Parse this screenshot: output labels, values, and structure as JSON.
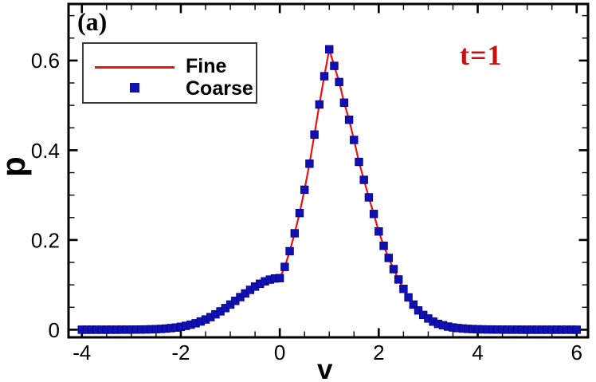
{
  "figure": {
    "panel_label": "(a)",
    "annotation": {
      "text": "t=1",
      "color": "#c41212"
    },
    "axes": {
      "xlabel": "v",
      "ylabel": "p",
      "x_range": [
        -4.27,
        6.23
      ],
      "y_range": [
        -0.017,
        0.726
      ],
      "x_major_ticks": [
        -4,
        -2,
        0,
        2,
        4,
        6
      ],
      "x_tick_labels": [
        "-4",
        "-2",
        "0",
        "2",
        "4",
        "6"
      ],
      "x_minor_step": 0.5,
      "y_major_ticks": [
        0,
        0.2,
        0.4,
        0.6
      ],
      "y_tick_labels": [
        "0",
        "0.2",
        "0.4",
        "0.6"
      ],
      "y_minor_step": 0.05,
      "frame_color": "#000000",
      "grid": "off"
    },
    "legend": {
      "position": "upper-left",
      "items": [
        {
          "label": "Fine",
          "type": "line",
          "color": "#ee1111"
        },
        {
          "label": "Coarse",
          "type": "square",
          "color": "#1111b2"
        }
      ]
    }
  },
  "chart_data": {
    "type": "line",
    "title": "",
    "xlabel": "v",
    "ylabel": "p",
    "xlim": [
      -4.27,
      6.23
    ],
    "ylim": [
      -0.017,
      0.726
    ],
    "legend_position": "upper-left",
    "grid": "off",
    "annotation": "t=1",
    "x": [
      -4,
      -3.9,
      -3.8,
      -3.7,
      -3.6,
      -3.5,
      -3.4,
      -3.3,
      -3.2,
      -3.1,
      -3,
      -2.9,
      -2.8,
      -2.7,
      -2.6,
      -2.5,
      -2.4,
      -2.3,
      -2.2,
      -2.1,
      -2,
      -1.9,
      -1.8,
      -1.7,
      -1.6,
      -1.5,
      -1.4,
      -1.3,
      -1.2,
      -1.1,
      -1,
      -0.9,
      -0.8,
      -0.7,
      -0.6,
      -0.5,
      -0.4,
      -0.3,
      -0.2,
      -0.1,
      0,
      0.1,
      0.2,
      0.3,
      0.4,
      0.5,
      0.6,
      0.7,
      0.8,
      0.9,
      1,
      1.1,
      1.2,
      1.3,
      1.4,
      1.5,
      1.6,
      1.7,
      1.8,
      1.9,
      2,
      2.1,
      2.2,
      2.3,
      2.4,
      2.5,
      2.6,
      2.7,
      2.8,
      2.9,
      3,
      3.1,
      3.2,
      3.3,
      3.4,
      3.5,
      3.6,
      3.7,
      3.8,
      3.9,
      4,
      4.1,
      4.2,
      4.3,
      4.4,
      4.5,
      4.6,
      4.7,
      4.8,
      4.9,
      5,
      5.1,
      5.2,
      5.3,
      5.4,
      5.5,
      5.6,
      5.7,
      5.8,
      5.9,
      6
    ],
    "y": [
      0,
      0,
      0,
      0,
      0,
      0,
      0,
      0,
      0.0001,
      0.0001,
      0.0002,
      0.0003,
      0.0004,
      0.0006,
      0.0009,
      0.0013,
      0.0018,
      0.0026,
      0.0036,
      0.0048,
      0.0065,
      0.0086,
      0.0112,
      0.0144,
      0.0183,
      0.0228,
      0.0281,
      0.0343,
      0.0409,
      0.0482,
      0.0561,
      0.0643,
      0.0726,
      0.0809,
      0.0888,
      0.0961,
      0.1025,
      0.1078,
      0.1117,
      0.1142,
      0.115,
      0.14,
      0.175,
      0.215,
      0.26,
      0.312,
      0.37,
      0.435,
      0.502,
      0.565,
      0.625,
      0.588,
      0.552,
      0.506,
      0.468,
      0.423,
      0.374,
      0.334,
      0.295,
      0.258,
      0.219,
      0.187,
      0.16,
      0.135,
      0.112,
      0.091,
      0.072,
      0.056,
      0.043,
      0.033,
      0.025,
      0.018,
      0.013,
      0.01,
      0.007,
      0.005,
      0.0037,
      0.0027,
      0.0019,
      0.0014,
      0.001,
      0.0007,
      0.0005,
      0.0004,
      0.0003,
      0.0002,
      0.0001,
      0.0001,
      0.0001,
      0,
      0,
      0,
      0,
      0,
      0,
      0,
      0,
      0,
      0,
      0,
      0
    ],
    "series": [
      {
        "name": "Fine",
        "style": "solid-line",
        "color": "#ee1111",
        "uses": "shared x/y arrays"
      },
      {
        "name": "Coarse",
        "style": "filled-square-markers",
        "color": "#1111b2",
        "uses": "shared x/y arrays"
      }
    ]
  }
}
